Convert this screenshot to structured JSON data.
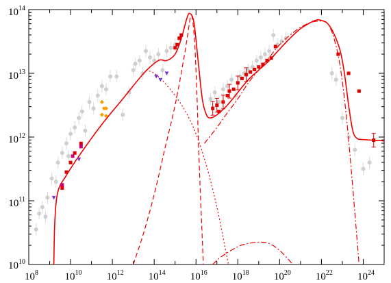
{
  "chart_data": {
    "type": "scatter",
    "title": "",
    "xlabel": "",
    "ylabel": "",
    "x_scale": "log",
    "y_scale": "log",
    "xlim": [
      100000000.0,
      1e+25
    ],
    "ylim": [
      10000000000.0,
      100000000000000.0
    ],
    "grid": false,
    "x_tick_labels": [
      {
        "base": "10",
        "exp": "8"
      },
      {
        "base": "10",
        "exp": "10"
      },
      {
        "base": "10",
        "exp": "12"
      },
      {
        "base": "10",
        "exp": "14"
      },
      {
        "base": "10",
        "exp": "16"
      },
      {
        "base": "10",
        "exp": "18"
      },
      {
        "base": "10",
        "exp": "20"
      },
      {
        "base": "10",
        "exp": "22"
      },
      {
        "base": "10",
        "exp": "24"
      }
    ],
    "y_tick_labels": [
      {
        "base": "10",
        "exp": "10"
      },
      {
        "base": "10",
        "exp": "11"
      },
      {
        "base": "10",
        "exp": "12"
      },
      {
        "base": "10",
        "exp": "13"
      },
      {
        "base": "10",
        "exp": "14"
      }
    ],
    "colors": {
      "model": "#ee0000",
      "archive": "#cfcfcf",
      "archive_err": "#d8d8d8",
      "red_points": "#dd0000",
      "orange_points": "#ff9900",
      "purple_points": "#7a33cc",
      "magenta_points": "#cc0077"
    },
    "series": [
      {
        "style": "total-solid",
        "points": [
          [
            9.2,
            10
          ],
          [
            9.25,
            10.7
          ],
          [
            9.4,
            11.15
          ],
          [
            9.8,
            11.4
          ],
          [
            10.5,
            11.75
          ],
          [
            11.5,
            12.2
          ],
          [
            12.5,
            12.6
          ],
          [
            13.5,
            13.0
          ],
          [
            14.2,
            13.2
          ],
          [
            14.6,
            13.2
          ],
          [
            15.0,
            13.3
          ],
          [
            15.3,
            13.55
          ],
          [
            15.55,
            13.85
          ],
          [
            15.7,
            13.94
          ],
          [
            15.9,
            13.8
          ],
          [
            16.1,
            13.2
          ],
          [
            16.3,
            12.6
          ],
          [
            16.5,
            12.35
          ],
          [
            16.7,
            12.3
          ],
          [
            17.0,
            12.35
          ],
          [
            17.5,
            12.5
          ],
          [
            18.0,
            12.7
          ],
          [
            18.5,
            12.9
          ],
          [
            19.0,
            13.05
          ],
          [
            19.5,
            13.2
          ],
          [
            20.0,
            13.38
          ],
          [
            20.5,
            13.55
          ],
          [
            21.0,
            13.7
          ],
          [
            21.5,
            13.8
          ],
          [
            21.8,
            13.84
          ],
          [
            22.0,
            13.83
          ],
          [
            22.3,
            13.78
          ],
          [
            22.6,
            13.62
          ],
          [
            22.9,
            13.35
          ],
          [
            23.1,
            13.0
          ],
          [
            23.3,
            12.5
          ],
          [
            23.5,
            12.1
          ],
          [
            23.7,
            11.98
          ],
          [
            24.0,
            11.96
          ],
          [
            25.0,
            11.94
          ]
        ]
      },
      {
        "style": "disk-dashed",
        "points": [
          [
            13.0,
            10
          ],
          [
            13.5,
            10.5
          ],
          [
            14.0,
            11.1
          ],
          [
            14.5,
            11.8
          ],
          [
            15.0,
            12.5
          ],
          [
            15.4,
            13.2
          ],
          [
            15.6,
            13.6
          ],
          [
            15.75,
            13.9
          ],
          [
            15.85,
            13.8
          ],
          [
            15.95,
            13.4
          ],
          [
            16.05,
            12.6
          ],
          [
            16.15,
            11.6
          ],
          [
            16.3,
            10.4
          ],
          [
            16.35,
            10
          ]
        ]
      },
      {
        "style": "synchrotron-dotted",
        "points": [
          [
            13.6,
            13.05
          ],
          [
            14.0,
            13.0
          ],
          [
            14.5,
            12.85
          ],
          [
            15.0,
            12.65
          ],
          [
            15.5,
            12.4
          ],
          [
            16.0,
            12.05
          ],
          [
            16.5,
            11.55
          ],
          [
            17.0,
            10.9
          ],
          [
            17.4,
            10.25
          ],
          [
            17.55,
            10
          ]
        ]
      },
      {
        "style": "ssc-dashdot",
        "points": [
          [
            16.4,
            11.9
          ],
          [
            17.0,
            12.15
          ],
          [
            17.5,
            12.38
          ],
          [
            18.0,
            12.6
          ],
          [
            18.5,
            12.85
          ],
          [
            19.0,
            13.05
          ],
          [
            19.5,
            13.25
          ],
          [
            20.0,
            13.45
          ],
          [
            20.5,
            13.6
          ],
          [
            21.0,
            13.72
          ],
          [
            21.5,
            13.8
          ],
          [
            22.0,
            13.82
          ],
          [
            22.3,
            13.78
          ],
          [
            22.6,
            13.55
          ],
          [
            22.9,
            13.1
          ],
          [
            23.2,
            12.3
          ],
          [
            23.5,
            11.2
          ],
          [
            23.8,
            10
          ]
        ]
      },
      {
        "style": "ec-dashdot",
        "points": [
          [
            16.8,
            10
          ],
          [
            17.2,
            10.12
          ],
          [
            18.0,
            10.28
          ],
          [
            18.5,
            10.33
          ],
          [
            19.0,
            10.35
          ],
          [
            19.5,
            10.33
          ],
          [
            20.0,
            10.22
          ],
          [
            20.5,
            10.05
          ],
          [
            20.6,
            10
          ]
        ]
      }
    ],
    "archive_points": [
      [
        8.35,
        10.55
      ],
      [
        8.5,
        10.8
      ],
      [
        8.65,
        10.9
      ],
      [
        8.8,
        10.75
      ],
      [
        8.9,
        11.05
      ],
      [
        9.1,
        11.35
      ],
      [
        9.3,
        11.3
      ],
      [
        9.4,
        11.6
      ],
      [
        9.6,
        11.75
      ],
      [
        9.8,
        11.9
      ],
      [
        9.9,
        11.7
      ],
      [
        10.0,
        12.05
      ],
      [
        10.2,
        12.15
      ],
      [
        10.4,
        12.3
      ],
      [
        10.55,
        12.4
      ],
      [
        10.7,
        12.1
      ],
      [
        10.9,
        12.55
      ],
      [
        11.1,
        12.45
      ],
      [
        11.3,
        12.65
      ],
      [
        11.5,
        12.8
      ],
      [
        11.7,
        12.75
      ],
      [
        11.9,
        12.95
      ],
      [
        12.2,
        12.95
      ],
      [
        12.5,
        12.35
      ],
      [
        12.8,
        12.7
      ],
      [
        13.0,
        13.05
      ],
      [
        13.1,
        13.15
      ],
      [
        13.3,
        13.2
      ],
      [
        13.45,
        13.0
      ],
      [
        13.6,
        13.35
      ],
      [
        13.8,
        13.25
      ],
      [
        14.0,
        13.2
      ],
      [
        14.2,
        13.3
      ],
      [
        14.4,
        13.05
      ],
      [
        14.6,
        13.35
      ],
      [
        14.8,
        13.4
      ],
      [
        15.0,
        13.45
      ],
      [
        15.2,
        13.55
      ],
      [
        16.7,
        12.6
      ],
      [
        16.9,
        12.7
      ],
      [
        17.1,
        12.55
      ],
      [
        17.3,
        12.75
      ],
      [
        17.5,
        12.8
      ],
      [
        17.7,
        12.9
      ],
      [
        17.9,
        12.65
      ],
      [
        18.1,
        12.95
      ],
      [
        18.3,
        13.0
      ],
      [
        18.5,
        13.05
      ],
      [
        18.7,
        13.1
      ],
      [
        18.9,
        13.2
      ],
      [
        19.1,
        13.25
      ],
      [
        19.3,
        13.3
      ],
      [
        19.5,
        13.35
      ],
      [
        19.7,
        13.6
      ],
      [
        19.9,
        13.45
      ],
      [
        20.1,
        13.5
      ],
      [
        20.3,
        13.55
      ],
      [
        22.5,
        13.0
      ],
      [
        22.7,
        12.9
      ],
      [
        23.0,
        12.3
      ],
      [
        23.3,
        12.0
      ],
      [
        23.6,
        11.8
      ],
      [
        24.0,
        11.5
      ],
      [
        24.3,
        11.6
      ]
    ],
    "red_points": [
      [
        9.6,
        11.2
      ],
      [
        9.8,
        11.45
      ],
      [
        10.0,
        11.6
      ],
      [
        10.2,
        11.75
      ],
      [
        10.5,
        11.9
      ],
      [
        15.0,
        13.4
      ],
      [
        15.1,
        13.45
      ],
      [
        15.2,
        13.55
      ],
      [
        15.3,
        13.6
      ],
      [
        16.8,
        12.45
      ],
      [
        17.0,
        12.5
      ],
      [
        17.1,
        12.4
      ],
      [
        17.3,
        12.55
      ],
      [
        17.5,
        12.65
      ],
      [
        17.6,
        12.72
      ],
      [
        17.8,
        12.75
      ],
      [
        18.0,
        12.85
      ],
      [
        18.2,
        12.92
      ],
      [
        18.4,
        12.98
      ],
      [
        18.6,
        13.02
      ],
      [
        18.8,
        13.06
      ],
      [
        19.0,
        13.1
      ],
      [
        19.2,
        13.14
      ],
      [
        19.4,
        13.2
      ],
      [
        19.6,
        13.24
      ],
      [
        19.8,
        13.42
      ],
      [
        22.8,
        13.3
      ],
      [
        23.3,
        13.0
      ],
      [
        23.8,
        12.72
      ],
      [
        24.5,
        11.95
      ]
    ],
    "red_error_x": [
      16.8,
      17.0,
      17.3,
      17.6,
      18.0,
      18.4,
      24.5
    ],
    "orange_points": [
      [
        11.5,
        12.55
      ],
      [
        11.6,
        12.45
      ],
      [
        11.7,
        12.45
      ],
      [
        11.5,
        12.35
      ],
      [
        11.7,
        12.33
      ]
    ],
    "purple_points": [
      [
        9.2,
        11.05
      ],
      [
        10.4,
        11.65
      ],
      [
        14.1,
        12.95
      ],
      [
        14.3,
        12.9
      ],
      [
        14.6,
        13.0
      ]
    ],
    "magenta_points": [
      [
        9.6,
        11.25
      ],
      [
        10.1,
        11.7
      ],
      [
        10.5,
        11.85
      ]
    ]
  }
}
